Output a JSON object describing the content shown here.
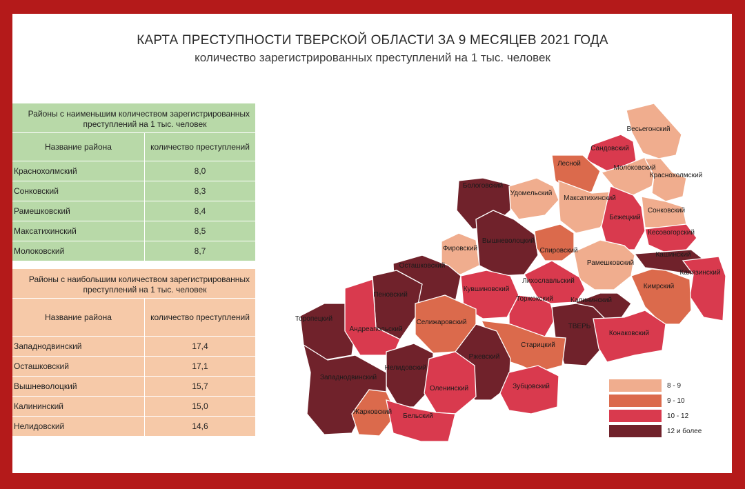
{
  "title": "КАРТА ПРЕСТУПНОСТИ ТВЕРСКОЙ ОБЛАСТИ ЗА 9 МЕСЯЦЕВ 2021 ГОДА",
  "subtitle": "количество зарегистрированных преступлений на 1 тыс. человек",
  "colors": {
    "frame": "#b41a1a",
    "low_table_bg": "#b8d9a8",
    "high_table_bg": "#f6c9a8",
    "cat_8_9": "#f0ad8e",
    "cat_9_10": "#db6a4c",
    "cat_10_12": "#d93a4e",
    "cat_12_plus": "#70222b"
  },
  "table_low": {
    "caption_line1": "Районы с наименьшим количеством зарегистрированных",
    "caption_line2": "преступлений на 1 тыс. человек",
    "col_name": "Название района",
    "col_count": "количество преступлений",
    "rows": [
      {
        "name": "Краснохолмский",
        "value": "8,0"
      },
      {
        "name": "Сонковский",
        "value": "8,3"
      },
      {
        "name": "Рамешковский",
        "value": "8,4"
      },
      {
        "name": "Максатихинский",
        "value": "8,5"
      },
      {
        "name": "Молоковский",
        "value": "8,7"
      }
    ]
  },
  "table_high": {
    "caption_line1": "Районы с наибольшим количеством зарегистрированных",
    "caption_line2": "преступлений на 1 тыс. человек",
    "col_name": "Название района",
    "col_count": "количество преступлений",
    "rows": [
      {
        "name": "Западнодвинский",
        "value": "17,4"
      },
      {
        "name": "Осташковский",
        "value": "17,1"
      },
      {
        "name": "Вышневолоцкий",
        "value": "15,7"
      },
      {
        "name": "Калининский",
        "value": "15,0"
      },
      {
        "name": "Нелидовский",
        "value": "14,6"
      }
    ]
  },
  "legend": [
    {
      "label": "8 - 9",
      "category": "cat_8_9"
    },
    {
      "label": "9 - 10",
      "category": "cat_9_10"
    },
    {
      "label": "10 - 12",
      "category": "cat_10_12"
    },
    {
      "label": "12 и более",
      "category": "cat_12_plus"
    }
  ],
  "regions": [
    {
      "name": "Весьегонский",
      "category": "cat_8_9"
    },
    {
      "name": "Сандовский",
      "category": "cat_10_12"
    },
    {
      "name": "Лесной",
      "category": "cat_9_10"
    },
    {
      "name": "Молоковский",
      "category": "cat_8_9"
    },
    {
      "name": "Краснохолмский",
      "category": "cat_8_9"
    },
    {
      "name": "Бологовский",
      "category": "cat_12_plus"
    },
    {
      "name": "Удомельский",
      "category": "cat_8_9"
    },
    {
      "name": "Максатихинский",
      "category": "cat_8_9"
    },
    {
      "name": "Бежецкий",
      "category": "cat_10_12"
    },
    {
      "name": "Сонковский",
      "category": "cat_8_9"
    },
    {
      "name": "Кесовогорский",
      "category": "cat_10_12"
    },
    {
      "name": "Фировский",
      "category": "cat_8_9"
    },
    {
      "name": "Вышневолоцкий",
      "category": "cat_12_plus"
    },
    {
      "name": "Спировский",
      "category": "cat_9_10"
    },
    {
      "name": "Рамешковский",
      "category": "cat_8_9"
    },
    {
      "name": "Кашинский",
      "category": "cat_12_plus"
    },
    {
      "name": "Калязинский",
      "category": "cat_10_12"
    },
    {
      "name": "Осташковский",
      "category": "cat_12_plus"
    },
    {
      "name": "Кувшиновский",
      "category": "cat_10_12"
    },
    {
      "name": "Лихославльский",
      "category": "cat_10_12"
    },
    {
      "name": "Торжокский",
      "category": "cat_10_12"
    },
    {
      "name": "Калининский",
      "category": "cat_12_plus"
    },
    {
      "name": "Кимрский",
      "category": "cat_9_10"
    },
    {
      "name": "Пеновский",
      "category": "cat_12_plus"
    },
    {
      "name": "Торопецкий",
      "category": "cat_12_plus"
    },
    {
      "name": "Андреапольский",
      "category": "cat_10_12"
    },
    {
      "name": "Селижаровский",
      "category": "cat_9_10"
    },
    {
      "name": "ТВЕРЬ",
      "category": "cat_12_plus"
    },
    {
      "name": "Конаковский",
      "category": "cat_10_12"
    },
    {
      "name": "Старицкий",
      "category": "cat_9_10"
    },
    {
      "name": "Ржевский",
      "category": "cat_12_plus"
    },
    {
      "name": "Нелидовский",
      "category": "cat_12_plus"
    },
    {
      "name": "Западнодвинский",
      "category": "cat_12_plus"
    },
    {
      "name": "Оленинский",
      "category": "cat_10_12"
    },
    {
      "name": "Зубцовский",
      "category": "cat_10_12"
    },
    {
      "name": "Жарковский",
      "category": "cat_9_10"
    },
    {
      "name": "Бельский",
      "category": "cat_10_12"
    }
  ]
}
